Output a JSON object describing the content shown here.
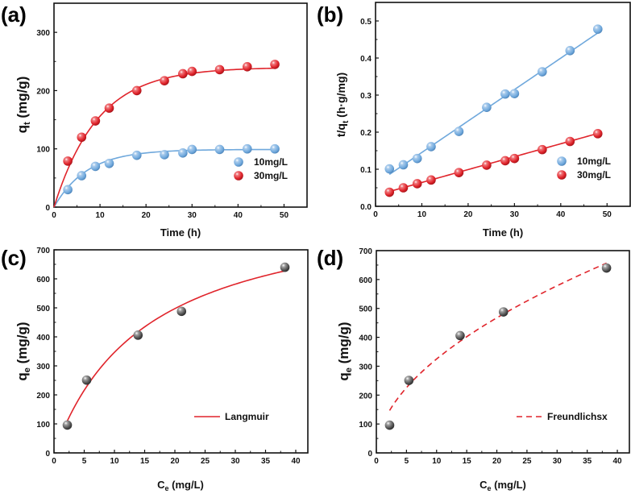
{
  "figure": {
    "colors": {
      "blue": "#6fa8dc",
      "red": "#e0242b",
      "gray": "#555555",
      "axis": "#111111"
    }
  },
  "chart_data": [
    {
      "id": "a",
      "panel_label": "(a)",
      "type": "scatter",
      "title": "",
      "xlabel": "Time (h)",
      "ylabel_main": "q",
      "ylabel_sub": "t",
      "ylabel_rest": " (mg/g)",
      "xlim": [
        0,
        55
      ],
      "ylim": [
        0,
        350
      ],
      "xticks": [
        0,
        10,
        20,
        30,
        40,
        50
      ],
      "yticks": [
        0,
        100,
        200,
        300
      ],
      "grid": false,
      "legend_position": "bottom-right",
      "series": [
        {
          "name": "10mg/L",
          "color": "#6fa8dc",
          "marker": "sphere",
          "x": [
            3,
            6,
            9,
            12,
            18,
            24,
            28,
            30,
            36,
            42,
            48
          ],
          "y": [
            30,
            54,
            70,
            75,
            89,
            90,
            93,
            99,
            99,
            100,
            100
          ],
          "fit": {
            "kind": "pseudo-first-order",
            "qe": 99,
            "k": 0.14
          }
        },
        {
          "name": "30mg/L",
          "color": "#e0242b",
          "marker": "sphere",
          "x": [
            3,
            6,
            9,
            12,
            18,
            24,
            28,
            30,
            36,
            42,
            48
          ],
          "y": [
            79,
            120,
            148,
            170,
            200,
            217,
            229,
            233,
            236,
            241,
            245
          ],
          "fit": {
            "kind": "pseudo-first-order",
            "qe": 240,
            "k": 0.105
          }
        }
      ]
    },
    {
      "id": "b",
      "panel_label": "(b)",
      "type": "scatter",
      "title": "",
      "xlabel": "Time (h)",
      "ylabel_main": "t/q",
      "ylabel_sub": "t",
      "ylabel_rest": " (h·g/mg)",
      "xlim": [
        0,
        55
      ],
      "ylim": [
        0,
        0.55
      ],
      "xticks": [
        0,
        10,
        20,
        30,
        40,
        50
      ],
      "yticks": [
        "0.0",
        "0.1",
        "0.2",
        "0.3",
        "0.4",
        "0.5"
      ],
      "grid": false,
      "legend_position": "bottom-right",
      "series": [
        {
          "name": "10mg/L",
          "color": "#6fa8dc",
          "marker": "sphere",
          "x": [
            3,
            6,
            9,
            12,
            18,
            24,
            28,
            30,
            36,
            42,
            48
          ],
          "y": [
            0.101,
            0.112,
            0.129,
            0.161,
            0.202,
            0.267,
            0.303,
            0.304,
            0.363,
            0.42,
            0.478
          ],
          "fit": {
            "kind": "linear",
            "slope": 0.00848,
            "intercept": 0.0605,
            "x_range": [
              3,
              48
            ]
          }
        },
        {
          "name": "30mg/L",
          "color": "#e0242b",
          "marker": "sphere",
          "x": [
            3,
            6,
            9,
            12,
            18,
            24,
            28,
            30,
            36,
            42,
            48
          ],
          "y": [
            0.038,
            0.05,
            0.061,
            0.071,
            0.091,
            0.111,
            0.123,
            0.129,
            0.153,
            0.175,
            0.196
          ],
          "fit": {
            "kind": "linear",
            "slope": 0.00348,
            "intercept": 0.0295,
            "x_range": [
              3,
              48
            ]
          }
        }
      ]
    },
    {
      "id": "c",
      "panel_label": "(c)",
      "type": "scatter",
      "title": "",
      "xlabel_main": "C",
      "xlabel_sub": "e",
      "xlabel_rest": " (mg/L)",
      "ylabel_main": "q",
      "ylabel_sub": "e",
      "ylabel_rest": " (mg/g)",
      "xlim": [
        0,
        42
      ],
      "ylim": [
        0,
        700
      ],
      "xticks": [
        0,
        5,
        10,
        15,
        20,
        25,
        30,
        35,
        40
      ],
      "yticks": [
        0,
        100,
        200,
        300,
        400,
        500,
        600,
        700
      ],
      "grid": false,
      "legend_position": "bottom-right",
      "legend": [
        {
          "name": "Langmuir",
          "style": "solid",
          "color": "#e0242b"
        }
      ],
      "series": [
        {
          "name": "data",
          "color": "#555555",
          "marker": "sphere",
          "x": [
            2.2,
            5.4,
            13.9,
            21.1,
            38.2
          ],
          "y": [
            96,
            251,
            406,
            488,
            640
          ],
          "fit": {
            "kind": "langmuir",
            "qmax": 880,
            "KL": 0.065,
            "x_range": [
              2.2,
              38.2
            ]
          }
        }
      ]
    },
    {
      "id": "d",
      "panel_label": "(d)",
      "type": "scatter",
      "title": "",
      "xlabel_main": "C",
      "xlabel_sub": "e",
      "xlabel_rest": " (mg/L)",
      "ylabel_main": "q",
      "ylabel_sub": "e",
      "ylabel_rest": " (mg/g)",
      "xlim": [
        0,
        42
      ],
      "ylim": [
        0,
        700
      ],
      "xticks": [
        0,
        5,
        10,
        15,
        20,
        25,
        30,
        35,
        40
      ],
      "yticks": [
        0,
        100,
        200,
        300,
        400,
        500,
        600,
        700
      ],
      "grid": false,
      "legend_position": "bottom-right",
      "legend": [
        {
          "name": "Freundlichsx",
          "style": "dashed",
          "color": "#e0242b"
        }
      ],
      "series": [
        {
          "name": "data",
          "color": "#555555",
          "marker": "sphere",
          "x": [
            2.2,
            5.4,
            13.9,
            21.1,
            38.2
          ],
          "y": [
            96,
            251,
            406,
            488,
            640
          ],
          "fit": {
            "kind": "freundlich",
            "KF": 97,
            "n_inv": 0.525,
            "x_range": [
              2.2,
              38.2
            ]
          }
        }
      ]
    }
  ]
}
